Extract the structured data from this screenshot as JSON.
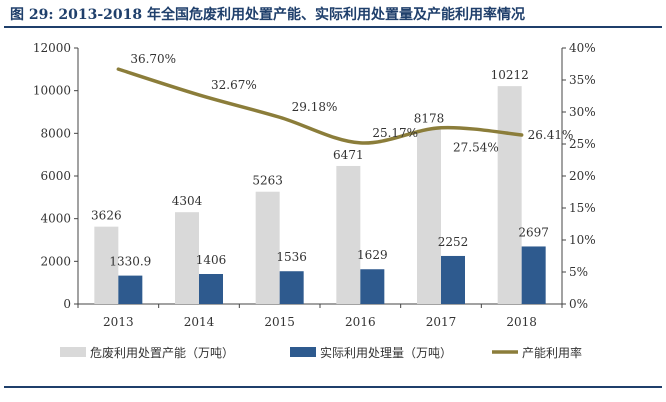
{
  "figure_title": "图 29:  2013-2018 年全国危废利用处置产能、实际利用处置量及产能利用率情况",
  "chart_data": {
    "type": "bar",
    "categories": [
      "2013",
      "2014",
      "2015",
      "2016",
      "2017",
      "2018"
    ],
    "series": [
      {
        "name": "危废利用处置产能（万吨）",
        "type": "bar",
        "axis": "left",
        "values": [
          3626,
          4304,
          5263,
          6471,
          8178,
          10212
        ],
        "labels": [
          "3626",
          "4304",
          "5263",
          "6471",
          "8178",
          "10212"
        ],
        "color": "#d9d9d9"
      },
      {
        "name": "实际利用处理量（万吨）",
        "type": "bar",
        "axis": "left",
        "values": [
          1330.9,
          1406,
          1536,
          1629,
          2252,
          2697
        ],
        "labels": [
          "1330.9",
          "1406",
          "1536",
          "1629",
          "2252",
          "2697"
        ],
        "color": "#2e5a8e"
      },
      {
        "name": "产能利用率",
        "type": "line",
        "axis": "right",
        "values": [
          36.7,
          32.67,
          29.18,
          25.17,
          27.54,
          26.41
        ],
        "labels": [
          "36.70%",
          "32.67%",
          "29.18%",
          "25.17%",
          "27.54%",
          "26.41%"
        ],
        "color": "#8b7d3a"
      }
    ],
    "y_left": {
      "lim": [
        0,
        12000
      ],
      "ticks": [
        "0",
        "2000",
        "4000",
        "6000",
        "8000",
        "10000",
        "12000"
      ]
    },
    "y_right": {
      "lim": [
        0,
        40
      ],
      "ticks": [
        "0%",
        "5%",
        "10%",
        "15%",
        "20%",
        "25%",
        "30%",
        "35%",
        "40%"
      ]
    },
    "legend": {
      "position": "bottom"
    }
  }
}
